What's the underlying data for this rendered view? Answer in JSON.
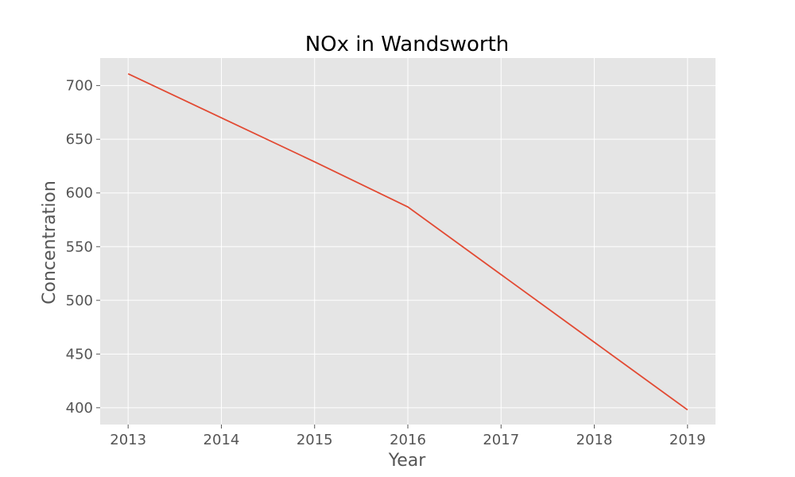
{
  "chart_data": {
    "type": "line",
    "title": "NOx in Wandsworth",
    "xlabel": "Year",
    "ylabel": "Concentration",
    "x": [
      2013,
      2014,
      2015,
      2016,
      2017,
      2018,
      2019
    ],
    "series": [
      {
        "values": [
          711,
          670,
          629,
          587,
          524,
          461,
          398
        ]
      }
    ],
    "xticks": [
      "2013",
      "2014",
      "2015",
      "2016",
      "2017",
      "2018",
      "2019"
    ],
    "yticks": [
      "400",
      "450",
      "500",
      "550",
      "600",
      "650",
      "700"
    ],
    "xlim": [
      2012.7,
      2019.3
    ],
    "ylim": [
      384.35,
      725.65
    ],
    "grid": true,
    "colors": {
      "line": "#E24A33",
      "plot_background": "#E5E5E5",
      "grid": "#FFFFFF"
    }
  }
}
